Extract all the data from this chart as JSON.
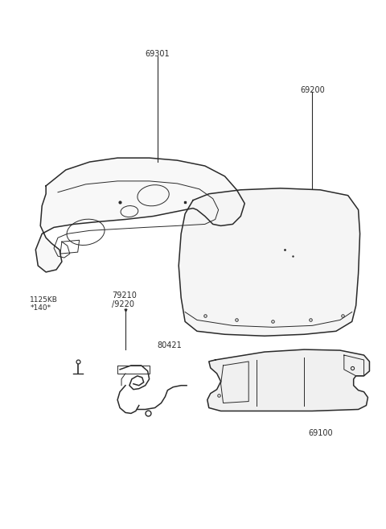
{
  "bg_color": "#ffffff",
  "line_color": "#2a2a2a",
  "label_color": "#2a2a2a",
  "figsize": [
    4.8,
    6.57
  ],
  "dpi": 100,
  "label_fs": 7.0
}
